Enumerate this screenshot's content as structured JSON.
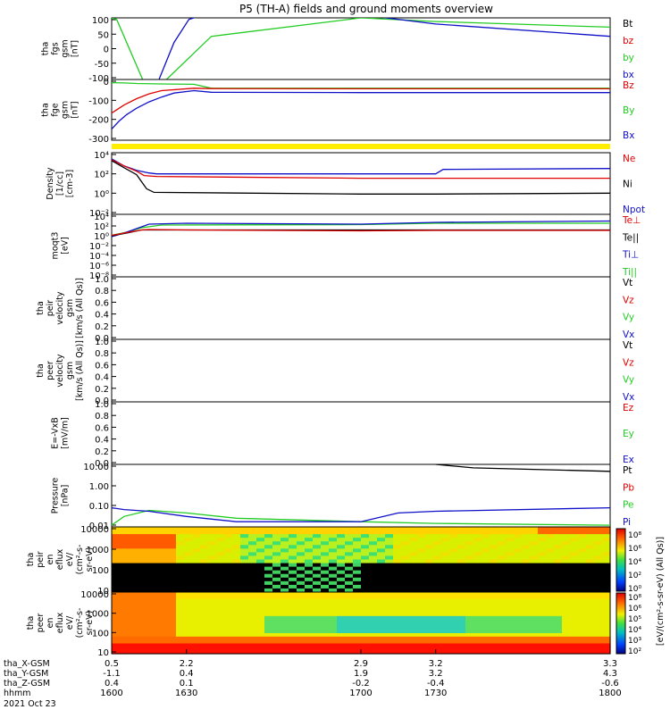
{
  "title": "P5 (TH-A) fields and ground moments overview",
  "date_label": "2021 Oct 23",
  "colors": {
    "black": "#000000",
    "red": "#e00000",
    "green": "#22cc22",
    "blue": "#1010c8",
    "yellow": "#ffee00"
  },
  "chart_data": [
    {
      "id": "fgs",
      "type": "line",
      "ylabel": [
        "tha",
        "fgs",
        "gsm",
        "[nT]"
      ],
      "yticks": [
        "100",
        "50",
        "0",
        "-50",
        "-100"
      ],
      "ylim": [
        -100,
        100
      ],
      "legend": [
        {
          "label": "Bt",
          "color": "black"
        },
        {
          "label": "bz",
          "color": "red"
        },
        {
          "label": "by",
          "color": "green"
        },
        {
          "label": "bx",
          "color": "blue"
        }
      ],
      "series": [
        {
          "color": "green",
          "x": [
            1600,
            1602,
            1614,
            1618,
            1622,
            1640,
            1700,
            1730,
            1800
          ],
          "y": [
            100,
            95,
            -130,
            -130,
            -100,
            40,
            100,
            88,
            70
          ]
        },
        {
          "color": "blue",
          "x": [
            1613,
            1619,
            1625,
            1631,
            1635,
            1700,
            1730,
            1800
          ],
          "y": [
            -130,
            -100,
            20,
            95,
            105,
            110,
            80,
            40
          ]
        }
      ]
    },
    {
      "id": "fge",
      "type": "line",
      "ylabel": [
        "tha",
        "fge",
        "gsm",
        "[nT]"
      ],
      "yticks": [
        "0",
        "-100",
        "-200",
        "-300"
      ],
      "ylim": [
        -320,
        60
      ],
      "legend": [
        {
          "label": "Bz",
          "color": "red"
        },
        {
          "label": "By",
          "color": "green"
        },
        {
          "label": "Bx",
          "color": "blue"
        }
      ],
      "series": [
        {
          "color": "green",
          "x": [
            1600,
            1605,
            1610,
            1620,
            1633,
            1640,
            1700,
            1730,
            1800
          ],
          "y": [
            40,
            38,
            35,
            32,
            30,
            5,
            5,
            5,
            5
          ]
        },
        {
          "color": "red",
          "x": [
            1600,
            1605,
            1610,
            1615,
            1620,
            1633,
            1640,
            1700,
            1730,
            1800
          ],
          "y": [
            -150,
            -100,
            -60,
            -30,
            -10,
            5,
            3,
            2,
            2,
            2
          ]
        },
        {
          "color": "blue",
          "x": [
            1600,
            1603,
            1606,
            1610,
            1615,
            1620,
            1625,
            1633,
            1640,
            1700,
            1730,
            1800
          ],
          "y": [
            -250,
            -200,
            -160,
            -120,
            -80,
            -50,
            -25,
            -10,
            -20,
            -22,
            -22,
            -22
          ]
        }
      ]
    },
    {
      "id": "density",
      "type": "line",
      "ylog": true,
      "ylabel": [
        "Density",
        "[1/cc]",
        "[cm-3]"
      ],
      "yticks": [
        "10⁴",
        "10²",
        "10⁰",
        "10⁻²"
      ],
      "ylim": [
        -2.5,
        4.5
      ],
      "legend": [
        {
          "label": "Ne",
          "color": "red"
        },
        {
          "label": "Ni",
          "color": "black"
        },
        {
          "label": "Npot",
          "color": "blue"
        }
      ],
      "series": [
        {
          "color": "blue",
          "x": [
            1600,
            1605,
            1610,
            1615,
            1618,
            1700,
            1730,
            1733,
            1800
          ],
          "y": [
            3.8,
            3.0,
            2.5,
            2.2,
            2.1,
            2.1,
            2.1,
            2.6,
            2.7
          ]
        },
        {
          "color": "red",
          "x": [
            1600,
            1605,
            1610,
            1613,
            1618,
            1700,
            1730,
            1800
          ],
          "y": [
            3.7,
            3.0,
            2.4,
            1.9,
            1.8,
            1.6,
            1.6,
            1.6
          ]
        },
        {
          "color": "black",
          "x": [
            1600,
            1605,
            1610,
            1612,
            1614,
            1617,
            1700,
            1730,
            1800
          ],
          "y": [
            3.6,
            2.8,
            2.0,
            1.2,
            0.4,
            0.0,
            -0.2,
            -0.2,
            -0.1
          ]
        }
      ]
    },
    {
      "id": "temp",
      "type": "line",
      "ylog": true,
      "ylabel": [
        "moqt3",
        "[eV]"
      ],
      "yticks": [
        "10⁴",
        "10²",
        "10⁰",
        "10⁻²",
        "10⁻⁴",
        "10⁻⁶",
        "10⁻⁸"
      ],
      "ylim": [
        -9,
        5
      ],
      "legend": [
        {
          "label": "Te⊥",
          "color": "red"
        },
        {
          "label": "Te||",
          "color": "black"
        },
        {
          "label": "Ti⊥",
          "color": "blue"
        },
        {
          "label": "Ti||",
          "color": "green"
        }
      ],
      "series": [
        {
          "color": "green",
          "x": [
            1600,
            1606,
            1612,
            1620,
            1700,
            1730,
            1800
          ],
          "y": [
            0.3,
            1.0,
            2.0,
            2.6,
            2.7,
            3.0,
            3.0
          ]
        },
        {
          "color": "blue",
          "x": [
            1600,
            1606,
            1612,
            1615,
            1630,
            1700,
            1730,
            1800
          ],
          "y": [
            0.0,
            1.0,
            2.2,
            2.8,
            3.0,
            2.8,
            3.2,
            3.5
          ]
        },
        {
          "color": "black",
          "x": [
            1600,
            1606,
            1612,
            1615,
            1700,
            1800
          ],
          "y": [
            0.2,
            0.8,
            1.5,
            1.5,
            1.5,
            1.5
          ]
        },
        {
          "color": "red",
          "x": [
            1600,
            1606,
            1612,
            1615,
            1630,
            1700,
            1730,
            1800
          ],
          "y": [
            0.3,
            0.9,
            1.5,
            1.6,
            1.5,
            1.3,
            1.4,
            1.4
          ]
        }
      ]
    },
    {
      "id": "peir-vel",
      "type": "line",
      "ylabel": [
        "tha",
        "peir",
        "velocity",
        "gsm",
        "[km/s (All Qs)]"
      ],
      "yticks": [
        "1.0",
        "0.8",
        "0.6",
        "0.4",
        "0.2",
        "0.0"
      ],
      "ylim": [
        0,
        1
      ],
      "legend": [
        {
          "label": "Vt",
          "color": "black"
        },
        {
          "label": "Vz",
          "color": "red"
        },
        {
          "label": "Vy",
          "color": "green"
        },
        {
          "label": "Vx",
          "color": "blue"
        }
      ],
      "series": []
    },
    {
      "id": "peer-vel",
      "type": "line",
      "ylabel": [
        "tha",
        "peer",
        "velocity",
        "gsm",
        "[km/s (All Qs)]"
      ],
      "yticks": [
        "1.0",
        "0.8",
        "0.6",
        "0.4",
        "0.2",
        "0.0"
      ],
      "ylim": [
        0,
        1
      ],
      "legend": [
        {
          "label": "Vt",
          "color": "black"
        },
        {
          "label": "Vz",
          "color": "red"
        },
        {
          "label": "Vy",
          "color": "green"
        },
        {
          "label": "Vx",
          "color": "blue"
        }
      ],
      "series": []
    },
    {
      "id": "efield",
      "type": "line",
      "ylabel": [
        "E=-VxB",
        "[mV/m]"
      ],
      "yticks": [
        "1.0",
        "0.8",
        "0.6",
        "0.4",
        "0.2",
        "0.0"
      ],
      "ylim": [
        0,
        1
      ],
      "legend": [
        {
          "label": "Ez",
          "color": "red"
        },
        {
          "label": "Ey",
          "color": "green"
        },
        {
          "label": "Ex",
          "color": "blue"
        }
      ],
      "series": []
    },
    {
      "id": "pressure",
      "type": "line",
      "ylog": true,
      "ylabel": [
        "Pressure",
        "[nPa]"
      ],
      "yticks": [
        "10.00",
        "1.00",
        "0.10",
        "0.01"
      ],
      "ylim": [
        -2.1,
        1.5
      ],
      "legend": [
        {
          "label": "Pt",
          "color": "black"
        },
        {
          "label": "Pb",
          "color": "red"
        },
        {
          "label": "Pe",
          "color": "green"
        },
        {
          "label": "Pi",
          "color": "blue"
        }
      ],
      "series": [
        {
          "color": "black",
          "x": [
            1730,
            1745,
            1800
          ],
          "y": [
            1.5,
            1.3,
            1.1
          ]
        },
        {
          "color": "green",
          "x": [
            1600,
            1605,
            1615,
            1630,
            1650,
            1700,
            1730,
            1800
          ],
          "y": [
            -2.0,
            -1.5,
            -1.15,
            -1.3,
            -1.6,
            -1.8,
            -1.9,
            -2.0
          ]
        },
        {
          "color": "blue",
          "x": [
            1600,
            1605,
            1615,
            1630,
            1650,
            1700,
            1715,
            1730,
            1800
          ],
          "y": [
            -1.0,
            -1.1,
            -1.2,
            -1.5,
            -1.8,
            -1.8,
            -1.3,
            -1.2,
            -1.0
          ]
        }
      ]
    },
    {
      "id": "peir-eflux",
      "type": "heatmap",
      "ylabel": [
        "tha",
        "peir",
        "en",
        "eflux",
        "eV/",
        "(cm²-s-",
        "sr-eV)"
      ],
      "yticks": [
        "10000",
        "1000",
        "100",
        "10"
      ]
    },
    {
      "id": "peer-eflux",
      "type": "heatmap",
      "ylabel": [
        "tha",
        "peer",
        "en",
        "eflux",
        "eV/",
        "(cm²-s-",
        "sr-eV)"
      ],
      "yticks": [
        "10000",
        "1000",
        "100",
        "10"
      ]
    }
  ],
  "colorbar": {
    "label": "[eV/(cm²-s-sr-eV) (All Qs)]",
    "ticks_upper": [
      "10⁸",
      "10⁶",
      "10⁴",
      "10²",
      "10⁰"
    ],
    "ticks_lower": [
      "10⁸",
      "10⁶",
      "10⁵",
      "10⁴",
      "10³",
      "10²"
    ]
  },
  "xaxis": {
    "rows": [
      {
        "label": "tha_X-GSM",
        "values": [
          "0.5",
          "2.2",
          "2.9",
          "3.2",
          "3.3"
        ]
      },
      {
        "label": "tha_Y-GSM",
        "values": [
          "-1.1",
          "0.4",
          "1.9",
          "3.2",
          "4.3"
        ]
      },
      {
        "label": "tha_Z-GSM",
        "values": [
          "0.4",
          "0.1",
          "-0.2",
          "-0.4",
          "-0.6"
        ]
      },
      {
        "label": "hhmm",
        "values": [
          "1600",
          "1630",
          "1700",
          "1730",
          "1800"
        ]
      }
    ],
    "range": [
      1600,
      1800
    ]
  }
}
